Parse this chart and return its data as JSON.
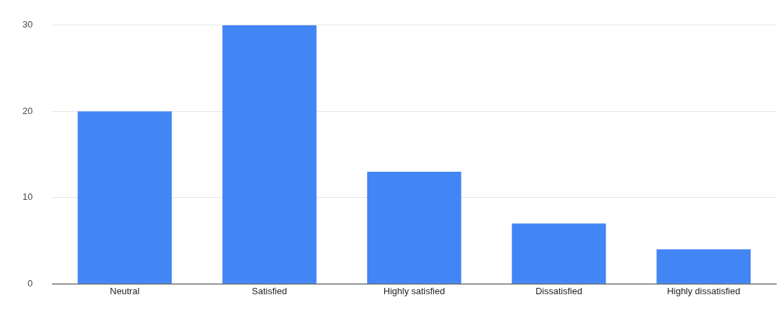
{
  "chart_data": {
    "type": "bar",
    "categories": [
      "Neutral",
      "Satisfied",
      "Highly satisfied",
      "Dissatisfied",
      "Highly dissatisfied"
    ],
    "values": [
      20,
      30,
      13,
      7,
      4
    ],
    "color": "#4285f4",
    "ylim": [
      0,
      30
    ],
    "yticks": [
      0,
      10,
      20,
      30
    ],
    "grid": "y",
    "legend": false
  }
}
